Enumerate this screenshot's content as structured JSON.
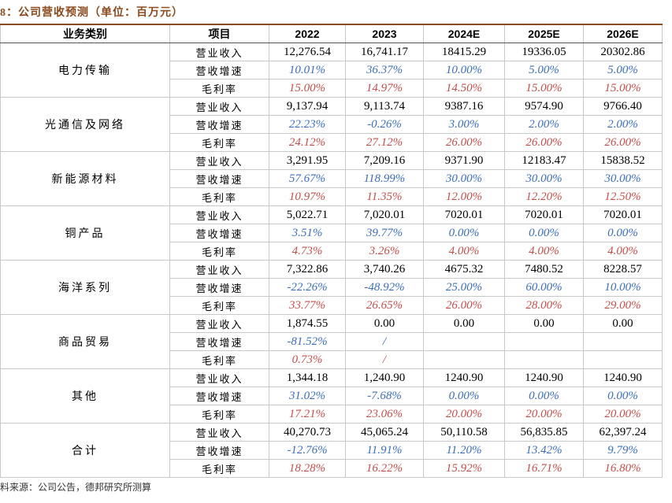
{
  "header": {
    "title": "8：公司营收预测（单位：百万元）"
  },
  "table": {
    "columns": [
      "业务类别",
      "项目",
      "2022",
      "2023",
      "2024E",
      "2025E",
      "2026E"
    ],
    "groups": [
      {
        "name": "电力传输",
        "rows": [
          [
            "营业收入",
            "12,276.54",
            "16,741.17",
            "18415.29",
            "19336.05",
            "20302.86"
          ],
          [
            "营收增速",
            "10.01%",
            "36.37%",
            "10.00%",
            "5.00%",
            "5.00%"
          ],
          [
            "毛利率",
            "15.00%",
            "14.97%",
            "14.50%",
            "15.00%",
            "15.00%"
          ]
        ]
      },
      {
        "name": "光通信及网络",
        "rows": [
          [
            "营业收入",
            "9,137.94",
            "9,113.74",
            "9387.16",
            "9574.90",
            "9766.40"
          ],
          [
            "营收增速",
            "22.23%",
            "-0.26%",
            "3.00%",
            "2.00%",
            "2.00%"
          ],
          [
            "毛利率",
            "24.12%",
            "27.12%",
            "26.00%",
            "26.00%",
            "26.00%"
          ]
        ]
      },
      {
        "name": "新能源材料",
        "rows": [
          [
            "营业收入",
            "3,291.95",
            "7,209.16",
            "9371.90",
            "12183.47",
            "15838.52"
          ],
          [
            "营收增速",
            "57.67%",
            "118.99%",
            "30.00%",
            "30.00%",
            "30.00%"
          ],
          [
            "毛利率",
            "10.97%",
            "11.35%",
            "12.00%",
            "12.20%",
            "12.50%"
          ]
        ]
      },
      {
        "name": "铜产品",
        "rows": [
          [
            "营业收入",
            "5,022.71",
            "7,020.01",
            "7020.01",
            "7020.01",
            "7020.01"
          ],
          [
            "营收增速",
            "3.51%",
            "39.77%",
            "0.00%",
            "0.00%",
            "0.00%"
          ],
          [
            "毛利率",
            "4.73%",
            "3.26%",
            "4.00%",
            "4.00%",
            "4.00%"
          ]
        ]
      },
      {
        "name": "海洋系列",
        "rows": [
          [
            "营业收入",
            "7,322.86",
            "3,740.26",
            "4675.32",
            "7480.52",
            "8228.57"
          ],
          [
            "营收增速",
            "-22.26%",
            "-48.92%",
            "25.00%",
            "60.00%",
            "10.00%"
          ],
          [
            "毛利率",
            "33.77%",
            "26.65%",
            "26.00%",
            "28.00%",
            "29.00%"
          ]
        ]
      },
      {
        "name": "商品贸易",
        "rows": [
          [
            "营业收入",
            "1,874.55",
            "0.00",
            "0.00",
            "0.00",
            "0.00"
          ],
          [
            "营收增速",
            "-81.52%",
            "/",
            null,
            null,
            null
          ],
          [
            "毛利率",
            "0.73%",
            "/",
            null,
            null,
            null
          ]
        ]
      },
      {
        "name": "其他",
        "rows": [
          [
            "营业收入",
            "1,344.18",
            "1,240.90",
            "1240.90",
            "1240.90",
            "1240.90"
          ],
          [
            "营收增速",
            "31.02%",
            "-7.68%",
            "0.00%",
            "0.00%",
            "0.00%"
          ],
          [
            "毛利率",
            "17.21%",
            "23.06%",
            "20.00%",
            "20.00%",
            "20.00%"
          ]
        ]
      },
      {
        "name": "合计",
        "rows": [
          [
            "营业收入",
            "40,270.73",
            "45,065.24",
            "50,110.58",
            "56,835.85",
            "62,397.24"
          ],
          [
            "营收增速",
            "-12.76%",
            "11.91%",
            "11.20%",
            "13.42%",
            "9.79%"
          ],
          [
            "毛利率",
            "18.28%",
            "16.22%",
            "15.92%",
            "16.71%",
            "16.80%"
          ]
        ]
      }
    ]
  },
  "footer": {
    "source": "料来源：公司公告，德邦研究所测算"
  }
}
